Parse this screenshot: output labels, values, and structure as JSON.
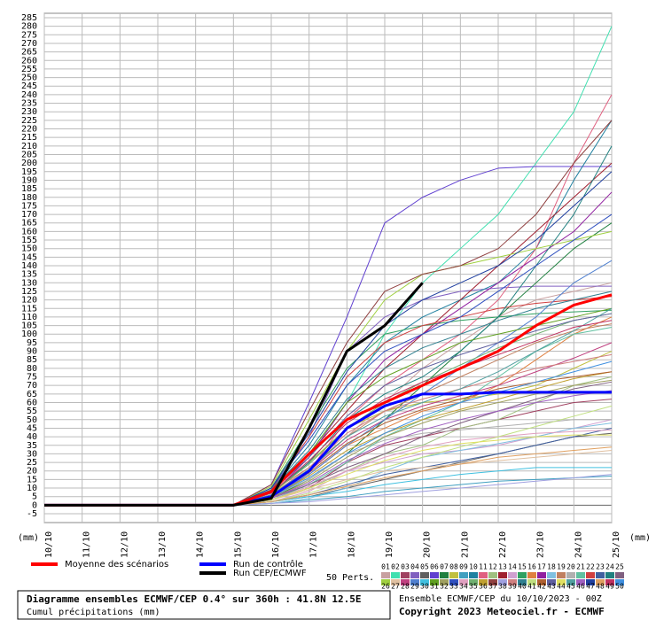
{
  "chart_data": {
    "type": "line",
    "title": "Diagramme ensembles ECMWF/CEP 0.4° sur 360h : 41.8N 12.5E",
    "subtitle": "Cumul précipitations (mm)",
    "run_info": "Ensemble ECMWF/CEP du 10/10/2023 - 00Z",
    "copyright": "Copyright 2023 Meteociel.fr - ECMWF",
    "ylabel": "(mm)",
    "ensemble_label": "50 Perts.",
    "grid": true,
    "categories": [
      "10/10",
      "11/10",
      "12/10",
      "13/10",
      "14/10",
      "15/10",
      "16/10",
      "17/10",
      "18/10",
      "19/10",
      "20/10",
      "21/10",
      "22/10",
      "23/10",
      "24/10",
      "25/10"
    ],
    "ylim": [
      -5,
      285
    ],
    "yticks": [
      -5,
      0,
      5,
      10,
      15,
      20,
      25,
      30,
      35,
      40,
      45,
      50,
      55,
      60,
      65,
      70,
      75,
      80,
      85,
      90,
      95,
      100,
      105,
      110,
      115,
      120,
      125,
      130,
      135,
      140,
      145,
      150,
      155,
      160,
      165,
      170,
      175,
      180,
      185,
      190,
      195,
      200,
      205,
      210,
      215,
      220,
      225,
      230,
      235,
      240,
      245,
      250,
      255,
      260,
      265,
      270,
      275,
      280,
      285
    ],
    "series": [
      {
        "name": "Moyenne des scénarios",
        "color": "#ff0000",
        "values": [
          0,
          0,
          0,
          0,
          0,
          0,
          8,
          30,
          50,
          60,
          70,
          80,
          90,
          105,
          117,
          123
        ]
      },
      {
        "name": "Run de contrôle",
        "color": "#0000ff",
        "values": [
          0,
          0,
          0,
          0,
          0,
          0,
          5,
          20,
          45,
          58,
          65,
          65,
          66,
          66,
          66,
          66
        ]
      },
      {
        "name": "Run CEP/ECMWF",
        "color": "#000000",
        "values": [
          0,
          0,
          0,
          0,
          0,
          0,
          4,
          45,
          90,
          105,
          130,
          null,
          null,
          null,
          null,
          null
        ]
      },
      {
        "name": "01",
        "color": "#c8a0a0",
        "values": [
          0,
          0,
          0,
          0,
          0,
          0,
          5,
          20,
          40,
          60,
          80,
          95,
          110,
          120,
          125,
          130
        ]
      },
      {
        "name": "02",
        "color": "#40e0b0",
        "values": [
          0,
          0,
          0,
          0,
          0,
          0,
          10,
          30,
          60,
          100,
          130,
          150,
          170,
          200,
          230,
          280
        ]
      },
      {
        "name": "03",
        "color": "#a04060",
        "values": [
          0,
          0,
          0,
          0,
          0,
          0,
          3,
          10,
          25,
          35,
          40,
          45,
          50,
          55,
          60,
          62
        ]
      },
      {
        "name": "04",
        "color": "#8060c0",
        "values": [
          0,
          0,
          0,
          0,
          0,
          0,
          8,
          40,
          90,
          110,
          120,
          125,
          127,
          128,
          128,
          128
        ]
      },
      {
        "name": "05",
        "color": "#606060",
        "values": [
          0,
          0,
          0,
          0,
          0,
          0,
          2,
          5,
          10,
          15,
          20,
          25,
          30,
          35,
          40,
          42
        ]
      },
      {
        "name": "06",
        "color": "#6040d0",
        "values": [
          0,
          0,
          0,
          0,
          0,
          0,
          12,
          60,
          110,
          165,
          180,
          190,
          197,
          198,
          198,
          198
        ]
      },
      {
        "name": "07",
        "color": "#208040",
        "values": [
          0,
          0,
          0,
          0,
          0,
          0,
          4,
          15,
          30,
          50,
          70,
          90,
          110,
          130,
          150,
          165
        ]
      },
      {
        "name": "08",
        "color": "#c0c040",
        "values": [
          0,
          0,
          0,
          0,
          0,
          0,
          6,
          25,
          45,
          55,
          60,
          62,
          65,
          70,
          80,
          90
        ]
      },
      {
        "name": "09",
        "color": "#40a0c0",
        "values": [
          0,
          0,
          0,
          0,
          0,
          0,
          1,
          3,
          5,
          8,
          10,
          12,
          14,
          15,
          16,
          17
        ]
      },
      {
        "name": "10",
        "color": "#2080a0",
        "values": [
          0,
          0,
          0,
          0,
          0,
          0,
          9,
          35,
          70,
          95,
          110,
          120,
          130,
          150,
          190,
          225
        ]
      },
      {
        "name": "11",
        "color": "#e06080",
        "values": [
          0,
          0,
          0,
          0,
          0,
          0,
          5,
          20,
          50,
          70,
          85,
          100,
          120,
          150,
          200,
          240
        ]
      },
      {
        "name": "12",
        "color": "#a0c080",
        "values": [
          0,
          0,
          0,
          0,
          0,
          0,
          3,
          10,
          20,
          30,
          35,
          45,
          50,
          60,
          70,
          75
        ]
      },
      {
        "name": "13",
        "color": "#a02030",
        "values": [
          0,
          0,
          0,
          0,
          0,
          0,
          7,
          30,
          55,
          80,
          100,
          120,
          140,
          160,
          180,
          200
        ]
      },
      {
        "name": "14",
        "color": "#d0a0d0",
        "values": [
          0,
          0,
          0,
          0,
          0,
          0,
          2,
          8,
          20,
          25,
          30,
          32,
          35,
          40,
          45,
          50
        ]
      },
      {
        "name": "15",
        "color": "#30a060",
        "values": [
          0,
          0,
          0,
          0,
          0,
          0,
          10,
          45,
          80,
          100,
          105,
          108,
          110,
          112,
          113,
          114
        ]
      },
      {
        "name": "16",
        "color": "#e08040",
        "values": [
          0,
          0,
          0,
          0,
          0,
          0,
          4,
          18,
          35,
          45,
          55,
          60,
          70,
          85,
          100,
          110
        ]
      },
      {
        "name": "17",
        "color": "#9020a0",
        "values": [
          0,
          0,
          0,
          0,
          0,
          0,
          6,
          28,
          60,
          85,
          100,
          115,
          130,
          145,
          160,
          183
        ]
      },
      {
        "name": "18",
        "color": "#80c0e0",
        "values": [
          0,
          0,
          0,
          0,
          0,
          0,
          1,
          4,
          10,
          20,
          28,
          32,
          36,
          40,
          45,
          48
        ]
      },
      {
        "name": "19",
        "color": "#c08060",
        "values": [
          0,
          0,
          0,
          0,
          0,
          0,
          8,
          22,
          40,
          55,
          65,
          75,
          85,
          95,
          102,
          106
        ]
      },
      {
        "name": "20",
        "color": "#b0b0b0",
        "values": [
          0,
          0,
          0,
          0,
          0,
          0,
          5,
          15,
          30,
          38,
          42,
          44,
          46,
          48,
          50,
          50
        ]
      },
      {
        "name": "21",
        "color": "#60c0a0",
        "values": [
          0,
          0,
          0,
          0,
          0,
          0,
          3,
          12,
          25,
          40,
          50,
          60,
          75,
          90,
          100,
          104
        ]
      },
      {
        "name": "22",
        "color": "#d04040",
        "values": [
          0,
          0,
          0,
          0,
          0,
          0,
          9,
          40,
          75,
          95,
          105,
          110,
          115,
          118,
          120,
          122
        ]
      },
      {
        "name": "23",
        "color": "#4060a0",
        "values": [
          0,
          0,
          0,
          0,
          0,
          0,
          2,
          6,
          12,
          18,
          22,
          26,
          30,
          35,
          40,
          45
        ]
      },
      {
        "name": "24",
        "color": "#208080",
        "values": [
          0,
          0,
          0,
          0,
          0,
          0,
          7,
          25,
          50,
          65,
          75,
          90,
          110,
          140,
          170,
          210
        ]
      },
      {
        "name": "25",
        "color": "#806080",
        "values": [
          0,
          0,
          0,
          0,
          0,
          0,
          4,
          12,
          22,
          30,
          40,
          48,
          55,
          62,
          68,
          72
        ]
      },
      {
        "name": "26",
        "color": "#a0d040",
        "values": [
          0,
          0,
          0,
          0,
          0,
          0,
          11,
          50,
          90,
          120,
          135,
          140,
          145,
          150,
          155,
          160
        ]
      },
      {
        "name": "27",
        "color": "#e0c0a0",
        "values": [
          0,
          0,
          0,
          0,
          0,
          0,
          3,
          9,
          15,
          20,
          22,
          24,
          26,
          28,
          30,
          32
        ]
      },
      {
        "name": "28",
        "color": "#c04080",
        "values": [
          0,
          0,
          0,
          0,
          0,
          0,
          6,
          20,
          38,
          50,
          58,
          64,
          70,
          78,
          86,
          95
        ]
      },
      {
        "name": "29",
        "color": "#5080d0",
        "values": [
          0,
          0,
          0,
          0,
          0,
          0,
          5,
          18,
          35,
          50,
          65,
          80,
          95,
          110,
          130,
          143
        ]
      },
      {
        "name": "30",
        "color": "#40c0e0",
        "values": [
          0,
          0,
          0,
          0,
          0,
          0,
          2,
          5,
          8,
          12,
          15,
          18,
          20,
          22,
          22,
          22
        ]
      },
      {
        "name": "31",
        "color": "#60a020",
        "values": [
          0,
          0,
          0,
          0,
          0,
          0,
          8,
          30,
          60,
          75,
          85,
          95,
          100,
          105,
          110,
          115
        ]
      },
      {
        "name": "32",
        "color": "#a0a060",
        "values": [
          0,
          0,
          0,
          0,
          0,
          0,
          4,
          14,
          28,
          40,
          48,
          55,
          60,
          65,
          70,
          73
        ]
      },
      {
        "name": "33",
        "color": "#3050c0",
        "values": [
          0,
          0,
          0,
          0,
          0,
          0,
          10,
          38,
          70,
          90,
          100,
          110,
          125,
          140,
          155,
          170
        ]
      },
      {
        "name": "34",
        "color": "#e0a0c0",
        "values": [
          0,
          0,
          0,
          0,
          0,
          0,
          3,
          11,
          20,
          28,
          34,
          38,
          40,
          42,
          43,
          44
        ]
      },
      {
        "name": "35",
        "color": "#70b070",
        "values": [
          0,
          0,
          0,
          0,
          0,
          0,
          7,
          24,
          45,
          60,
          72,
          82,
          92,
          100,
          108,
          112
        ]
      },
      {
        "name": "36",
        "color": "#c0a030",
        "values": [
          0,
          0,
          0,
          0,
          0,
          0,
          5,
          17,
          32,
          42,
          50,
          56,
          62,
          68,
          74,
          78
        ]
      },
      {
        "name": "37",
        "color": "#904040",
        "values": [
          0,
          0,
          0,
          0,
          0,
          0,
          12,
          55,
          95,
          125,
          135,
          140,
          150,
          170,
          200,
          225
        ]
      },
      {
        "name": "38",
        "color": "#a0a0e0",
        "values": [
          0,
          0,
          0,
          0,
          0,
          0,
          1,
          2,
          4,
          6,
          8,
          10,
          12,
          14,
          16,
          18
        ]
      },
      {
        "name": "39",
        "color": "#d08080",
        "values": [
          0,
          0,
          0,
          0,
          0,
          0,
          6,
          22,
          42,
          55,
          62,
          68,
          74,
          80,
          84,
          88
        ]
      },
      {
        "name": "40",
        "color": "#308090",
        "values": [
          0,
          0,
          0,
          0,
          0,
          0,
          9,
          32,
          62,
          80,
          92,
          100,
          108,
          115,
          120,
          125
        ]
      },
      {
        "name": "41",
        "color": "#c0e080",
        "values": [
          0,
          0,
          0,
          0,
          0,
          0,
          2,
          7,
          14,
          22,
          28,
          34,
          40,
          46,
          52,
          58
        ]
      },
      {
        "name": "42",
        "color": "#b06030",
        "values": [
          0,
          0,
          0,
          0,
          0,
          0,
          5,
          19,
          36,
          48,
          56,
          62,
          68,
          72,
          75,
          78
        ]
      },
      {
        "name": "43",
        "color": "#6060a0",
        "values": [
          0,
          0,
          0,
          0,
          0,
          0,
          8,
          28,
          52,
          70,
          80,
          88,
          95,
          102,
          108,
          112
        ]
      },
      {
        "name": "44",
        "color": "#e0e060",
        "values": [
          0,
          0,
          0,
          0,
          0,
          0,
          3,
          10,
          18,
          26,
          32,
          36,
          38,
          40,
          41,
          41
        ]
      },
      {
        "name": "45",
        "color": "#50a0a0",
        "values": [
          0,
          0,
          0,
          0,
          0,
          0,
          6,
          21,
          40,
          52,
          60,
          68,
          78,
          90,
          102,
          115
        ]
      },
      {
        "name": "46",
        "color": "#a060c0",
        "values": [
          0,
          0,
          0,
          0,
          0,
          0,
          4,
          13,
          26,
          36,
          44,
          50,
          55,
          60,
          64,
          67
        ]
      },
      {
        "name": "47",
        "color": "#2040a0",
        "values": [
          0,
          0,
          0,
          0,
          0,
          0,
          10,
          42,
          78,
          105,
          120,
          130,
          140,
          155,
          175,
          195
        ]
      },
      {
        "name": "48",
        "color": "#e0a060",
        "values": [
          0,
          0,
          0,
          0,
          0,
          0,
          2,
          6,
          11,
          16,
          20,
          24,
          28,
          30,
          32,
          34
        ]
      },
      {
        "name": "49",
        "color": "#c03060",
        "values": [
          0,
          0,
          0,
          0,
          0,
          0,
          7,
          26,
          48,
          62,
          72,
          80,
          88,
          96,
          104,
          108
        ]
      },
      {
        "name": "50",
        "color": "#4090e0",
        "values": [
          0,
          0,
          0,
          0,
          0,
          0,
          5,
          16,
          30,
          42,
          52,
          60,
          66,
          72,
          78,
          84
        ]
      }
    ]
  }
}
